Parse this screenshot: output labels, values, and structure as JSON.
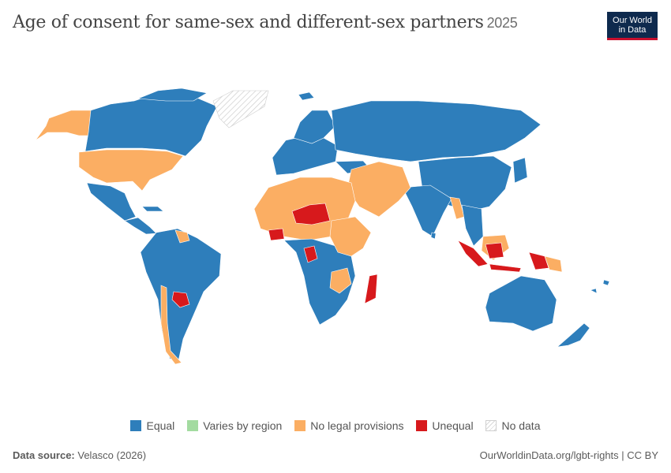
{
  "header": {
    "title": "Age of consent for same-sex and different-sex partners",
    "year": "2025"
  },
  "logo": {
    "line1": "Our World",
    "line2": "in Data",
    "bg": "#0e2a4e",
    "accent": "#c8102e"
  },
  "legend": {
    "items": [
      {
        "label": "Equal",
        "color": "#2e7ebb"
      },
      {
        "label": "Varies by region",
        "color": "#a3dba0"
      },
      {
        "label": "No legal provisions",
        "color": "#fbae63"
      },
      {
        "label": "Unequal",
        "color": "#d7191c"
      },
      {
        "label": "No data",
        "color": "#ffffff",
        "pattern": "hatched"
      }
    ]
  },
  "footer": {
    "source_label": "Data source:",
    "source_value": "Velasco (2026)",
    "url_text": "OurWorldinData.org/lgbt-rights | CC BY"
  }
}
